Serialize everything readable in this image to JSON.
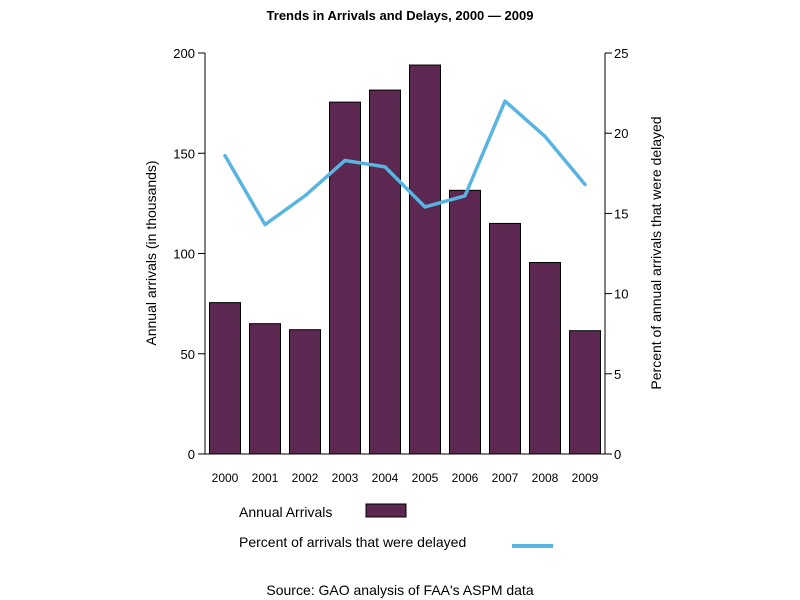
{
  "chart_data": {
    "type": "bar",
    "title": "Trends in Arrivals and Delays, 2000 — 2009",
    "ylabel": "Annual arrivals (in thousands)",
    "y2label": "Percent of annual arrivals that were delayed",
    "categories": [
      "2000",
      "2001",
      "2002",
      "2003",
      "2004",
      "2005",
      "2006",
      "2007",
      "2008",
      "2009"
    ],
    "ylim": [
      0,
      200
    ],
    "yticks": [
      0,
      50,
      100,
      150,
      200
    ],
    "y2lim": [
      0,
      25
    ],
    "y2ticks": [
      0,
      5,
      10,
      15,
      20,
      25
    ],
    "series": [
      {
        "name": "Annual Arrivals",
        "type": "bar",
        "axis": "left",
        "color": "#5c2750",
        "values": [
          75.5,
          65,
          62,
          175.5,
          181.5,
          194,
          131.5,
          115,
          95.5,
          61.5
        ]
      },
      {
        "name": "Percent of arrivals that were delayed",
        "type": "line",
        "axis": "right",
        "color": "#5ab4e0",
        "values": [
          18.6,
          14.3,
          16.1,
          18.3,
          17.9,
          15.4,
          16.1,
          22.0,
          19.8,
          16.8
        ]
      }
    ],
    "legend_position": "bottom",
    "grid": false,
    "source": "Source: GAO analysis of FAA's ASPM data"
  }
}
